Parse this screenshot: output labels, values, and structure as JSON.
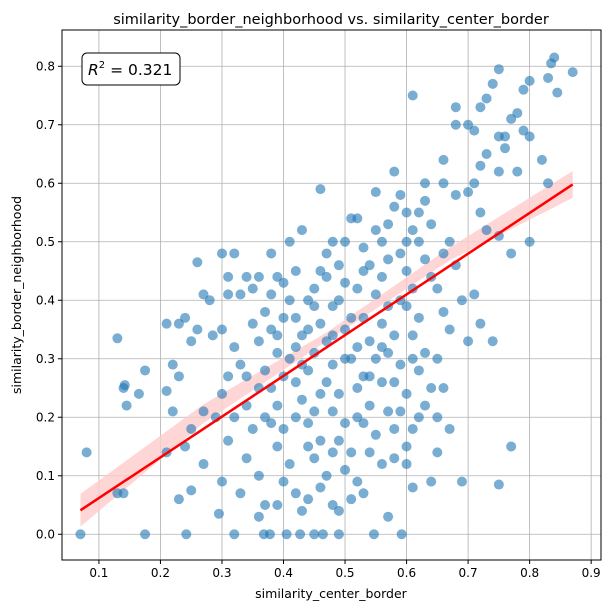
{
  "chart_data": {
    "type": "scatter",
    "title": "similarity_border_neighborhood vs. similarity_center_border",
    "xlabel": "similarity_center_border",
    "ylabel": "similarity_border_neighborhood",
    "xlim": [
      0.04,
      0.916
    ],
    "ylim": [
      -0.044,
      0.862
    ],
    "xticks": [
      0.1,
      0.2,
      0.3,
      0.4,
      0.5,
      0.6,
      0.7,
      0.8,
      0.9
    ],
    "xtick_labels": [
      "0.1",
      "0.2",
      "0.3",
      "0.4",
      "0.5",
      "0.6",
      "0.7",
      "0.8",
      "0.9"
    ],
    "yticks": [
      0.0,
      0.1,
      0.2,
      0.3,
      0.4,
      0.5,
      0.6,
      0.7,
      0.8
    ],
    "ytick_labels": [
      "0.0",
      "0.1",
      "0.2",
      "0.3",
      "0.4",
      "0.5",
      "0.6",
      "0.7",
      "0.8"
    ],
    "grid": true,
    "annotation": {
      "label": "R",
      "sup": "2",
      "rest": " = 0.321",
      "placement": "top-left"
    },
    "colors": {
      "points": "#1f77b4",
      "regression": "#ff0000",
      "ci_band": "#ffcccc",
      "grid": "#b0b0b0"
    },
    "regression": {
      "x": [
        0.07,
        0.87
      ],
      "y": [
        0.041,
        0.598
      ]
    },
    "ci_band": {
      "x": [
        0.07,
        0.27,
        0.47,
        0.67,
        0.87
      ],
      "lower": [
        0.013,
        0.19,
        0.33,
        0.468,
        0.575
      ],
      "upper": [
        0.069,
        0.222,
        0.345,
        0.49,
        0.621
      ]
    },
    "points": [
      [
        0.07,
        0.0
      ],
      [
        0.175,
        0.0
      ],
      [
        0.242,
        0.0
      ],
      [
        0.32,
        0.0
      ],
      [
        0.368,
        0.0
      ],
      [
        0.378,
        0.0
      ],
      [
        0.405,
        0.0
      ],
      [
        0.427,
        0.0
      ],
      [
        0.45,
        0.0
      ],
      [
        0.464,
        0.0
      ],
      [
        0.49,
        0.0
      ],
      [
        0.547,
        0.0
      ],
      [
        0.592,
        0.0
      ],
      [
        0.08,
        0.14
      ],
      [
        0.14,
        0.25
      ],
      [
        0.142,
        0.255
      ],
      [
        0.145,
        0.22
      ],
      [
        0.13,
        0.335
      ],
      [
        0.13,
        0.07
      ],
      [
        0.14,
        0.07
      ],
      [
        0.175,
        0.28
      ],
      [
        0.165,
        0.24
      ],
      [
        0.21,
        0.36
      ],
      [
        0.21,
        0.14
      ],
      [
        0.21,
        0.245
      ],
      [
        0.23,
        0.36
      ],
      [
        0.24,
        0.37
      ],
      [
        0.22,
        0.29
      ],
      [
        0.22,
        0.21
      ],
      [
        0.23,
        0.06
      ],
      [
        0.26,
        0.465
      ],
      [
        0.27,
        0.41
      ],
      [
        0.28,
        0.4
      ],
      [
        0.25,
        0.33
      ],
      [
        0.26,
        0.35
      ],
      [
        0.285,
        0.34
      ],
      [
        0.23,
        0.27
      ],
      [
        0.25,
        0.18
      ],
      [
        0.24,
        0.15
      ],
      [
        0.27,
        0.21
      ],
      [
        0.29,
        0.2
      ],
      [
        0.27,
        0.12
      ],
      [
        0.3,
        0.09
      ],
      [
        0.25,
        0.075
      ],
      [
        0.295,
        0.035
      ],
      [
        0.31,
        0.44
      ],
      [
        0.3,
        0.48
      ],
      [
        0.31,
        0.41
      ],
      [
        0.32,
        0.48
      ],
      [
        0.34,
        0.44
      ],
      [
        0.36,
        0.44
      ],
      [
        0.38,
        0.48
      ],
      [
        0.33,
        0.41
      ],
      [
        0.35,
        0.42
      ],
      [
        0.3,
        0.35
      ],
      [
        0.32,
        0.32
      ],
      [
        0.33,
        0.29
      ],
      [
        0.31,
        0.27
      ],
      [
        0.3,
        0.24
      ],
      [
        0.34,
        0.22
      ],
      [
        0.32,
        0.2
      ],
      [
        0.35,
        0.18
      ],
      [
        0.31,
        0.16
      ],
      [
        0.34,
        0.13
      ],
      [
        0.36,
        0.1
      ],
      [
        0.33,
        0.07
      ],
      [
        0.37,
        0.05
      ],
      [
        0.39,
        0.05
      ],
      [
        0.36,
        0.03
      ],
      [
        0.37,
        0.38
      ],
      [
        0.38,
        0.35
      ],
      [
        0.39,
        0.31
      ],
      [
        0.37,
        0.28
      ],
      [
        0.38,
        0.25
      ],
      [
        0.39,
        0.22
      ],
      [
        0.37,
        0.2
      ],
      [
        0.4,
        0.18
      ],
      [
        0.39,
        0.15
      ],
      [
        0.41,
        0.12
      ],
      [
        0.4,
        0.09
      ],
      [
        0.42,
        0.07
      ],
      [
        0.43,
        0.04
      ],
      [
        0.44,
        0.06
      ],
      [
        0.41,
        0.4
      ],
      [
        0.4,
        0.43
      ],
      [
        0.42,
        0.45
      ],
      [
        0.41,
        0.5
      ],
      [
        0.43,
        0.52
      ],
      [
        0.42,
        0.37
      ],
      [
        0.43,
        0.34
      ],
      [
        0.41,
        0.3
      ],
      [
        0.44,
        0.28
      ],
      [
        0.42,
        0.26
      ],
      [
        0.43,
        0.23
      ],
      [
        0.45,
        0.21
      ],
      [
        0.44,
        0.19
      ],
      [
        0.46,
        0.16
      ],
      [
        0.45,
        0.13
      ],
      [
        0.47,
        0.1
      ],
      [
        0.46,
        0.08
      ],
      [
        0.48,
        0.05
      ],
      [
        0.49,
        0.04
      ],
      [
        0.51,
        0.06
      ],
      [
        0.53,
        0.07
      ],
      [
        0.45,
        0.42
      ],
      [
        0.46,
        0.45
      ],
      [
        0.47,
        0.48
      ],
      [
        0.45,
        0.39
      ],
      [
        0.46,
        0.36
      ],
      [
        0.47,
        0.33
      ],
      [
        0.45,
        0.31
      ],
      [
        0.48,
        0.29
      ],
      [
        0.47,
        0.26
      ],
      [
        0.49,
        0.24
      ],
      [
        0.48,
        0.21
      ],
      [
        0.5,
        0.19
      ],
      [
        0.49,
        0.16
      ],
      [
        0.51,
        0.14
      ],
      [
        0.5,
        0.11
      ],
      [
        0.52,
        0.09
      ],
      [
        0.46,
        0.59
      ],
      [
        0.48,
        0.5
      ],
      [
        0.49,
        0.46
      ],
      [
        0.5,
        0.43
      ],
      [
        0.49,
        0.4
      ],
      [
        0.51,
        0.37
      ],
      [
        0.5,
        0.35
      ],
      [
        0.52,
        0.32
      ],
      [
        0.51,
        0.3
      ],
      [
        0.53,
        0.27
      ],
      [
        0.52,
        0.25
      ],
      [
        0.54,
        0.22
      ],
      [
        0.53,
        0.19
      ],
      [
        0.55,
        0.17
      ],
      [
        0.54,
        0.14
      ],
      [
        0.56,
        0.12
      ],
      [
        0.52,
        0.54
      ],
      [
        0.51,
        0.54
      ],
      [
        0.53,
        0.49
      ],
      [
        0.55,
        0.52
      ],
      [
        0.54,
        0.46
      ],
      [
        0.56,
        0.44
      ],
      [
        0.55,
        0.41
      ],
      [
        0.57,
        0.39
      ],
      [
        0.56,
        0.36
      ],
      [
        0.58,
        0.34
      ],
      [
        0.57,
        0.31
      ],
      [
        0.59,
        0.29
      ],
      [
        0.58,
        0.26
      ],
      [
        0.6,
        0.24
      ],
      [
        0.59,
        0.21
      ],
      [
        0.61,
        0.18
      ],
      [
        0.6,
        0.15
      ],
      [
        0.58,
        0.13
      ],
      [
        0.6,
        0.12
      ],
      [
        0.57,
        0.03
      ],
      [
        0.56,
        0.5
      ],
      [
        0.57,
        0.53
      ],
      [
        0.58,
        0.56
      ],
      [
        0.59,
        0.48
      ],
      [
        0.6,
        0.45
      ],
      [
        0.61,
        0.42
      ],
      [
        0.6,
        0.39
      ],
      [
        0.62,
        0.37
      ],
      [
        0.61,
        0.34
      ],
      [
        0.63,
        0.31
      ],
      [
        0.62,
        0.28
      ],
      [
        0.64,
        0.25
      ],
      [
        0.63,
        0.22
      ],
      [
        0.65,
        0.2
      ],
      [
        0.58,
        0.62
      ],
      [
        0.55,
        0.585
      ],
      [
        0.59,
        0.58
      ],
      [
        0.6,
        0.55
      ],
      [
        0.61,
        0.52
      ],
      [
        0.62,
        0.5
      ],
      [
        0.63,
        0.47
      ],
      [
        0.64,
        0.44
      ],
      [
        0.65,
        0.42
      ],
      [
        0.66,
        0.48
      ],
      [
        0.64,
        0.53
      ],
      [
        0.62,
        0.55
      ],
      [
        0.63,
        0.57
      ],
      [
        0.63,
        0.6
      ],
      [
        0.66,
        0.64
      ],
      [
        0.66,
        0.6
      ],
      [
        0.68,
        0.58
      ],
      [
        0.7,
        0.585
      ],
      [
        0.71,
        0.6
      ],
      [
        0.67,
        0.5
      ],
      [
        0.68,
        0.46
      ],
      [
        0.66,
        0.38
      ],
      [
        0.67,
        0.35
      ],
      [
        0.65,
        0.3
      ],
      [
        0.66,
        0.25
      ],
      [
        0.67,
        0.18
      ],
      [
        0.65,
        0.14
      ],
      [
        0.64,
        0.09
      ],
      [
        0.61,
        0.08
      ],
      [
        0.69,
        0.09
      ],
      [
        0.69,
        0.4
      ],
      [
        0.71,
        0.41
      ],
      [
        0.7,
        0.33
      ],
      [
        0.72,
        0.36
      ],
      [
        0.74,
        0.33
      ],
      [
        0.77,
        0.15
      ],
      [
        0.75,
        0.085
      ],
      [
        0.77,
        0.48
      ],
      [
        0.8,
        0.5
      ],
      [
        0.73,
        0.52
      ],
      [
        0.75,
        0.51
      ],
      [
        0.72,
        0.55
      ],
      [
        0.61,
        0.75
      ],
      [
        0.68,
        0.73
      ],
      [
        0.68,
        0.7
      ],
      [
        0.7,
        0.7
      ],
      [
        0.71,
        0.69
      ],
      [
        0.72,
        0.63
      ],
      [
        0.73,
        0.65
      ],
      [
        0.75,
        0.62
      ],
      [
        0.76,
        0.66
      ],
      [
        0.75,
        0.68
      ],
      [
        0.76,
        0.68
      ],
      [
        0.78,
        0.62
      ],
      [
        0.79,
        0.69
      ],
      [
        0.8,
        0.68
      ],
      [
        0.82,
        0.64
      ],
      [
        0.83,
        0.6
      ],
      [
        0.73,
        0.745
      ],
      [
        0.72,
        0.73
      ],
      [
        0.77,
        0.71
      ],
      [
        0.78,
        0.72
      ],
      [
        0.74,
        0.77
      ],
      [
        0.75,
        0.795
      ],
      [
        0.79,
        0.76
      ],
      [
        0.8,
        0.775
      ],
      [
        0.83,
        0.78
      ],
      [
        0.845,
        0.755
      ],
      [
        0.835,
        0.805
      ],
      [
        0.84,
        0.815
      ],
      [
        0.87,
        0.79
      ],
      [
        0.35,
        0.36
      ],
      [
        0.36,
        0.33
      ],
      [
        0.38,
        0.41
      ],
      [
        0.39,
        0.44
      ],
      [
        0.4,
        0.37
      ],
      [
        0.42,
        0.32
      ],
      [
        0.44,
        0.35
      ],
      [
        0.44,
        0.4
      ],
      [
        0.47,
        0.44
      ],
      [
        0.48,
        0.39
      ],
      [
        0.5,
        0.3
      ],
      [
        0.5,
        0.5
      ],
      [
        0.52,
        0.42
      ],
      [
        0.53,
        0.37
      ],
      [
        0.54,
        0.33
      ],
      [
        0.55,
        0.3
      ],
      [
        0.56,
        0.26
      ],
      [
        0.57,
        0.21
      ],
      [
        0.58,
        0.18
      ],
      [
        0.59,
        0.4
      ],
      [
        0.61,
        0.3
      ],
      [
        0.62,
        0.2
      ],
      [
        0.4,
        0.27
      ],
      [
        0.42,
        0.2
      ],
      [
        0.44,
        0.15
      ],
      [
        0.46,
        0.24
      ],
      [
        0.48,
        0.14
      ],
      [
        0.52,
        0.2
      ],
      [
        0.54,
        0.27
      ],
      [
        0.56,
        0.32
      ],
      [
        0.57,
        0.47
      ],
      [
        0.6,
        0.5
      ],
      [
        0.53,
        0.45
      ],
      [
        0.48,
        0.34
      ],
      [
        0.43,
        0.29
      ],
      [
        0.39,
        0.34
      ],
      [
        0.36,
        0.25
      ],
      [
        0.34,
        0.27
      ],
      [
        0.38,
        0.19
      ]
    ]
  }
}
